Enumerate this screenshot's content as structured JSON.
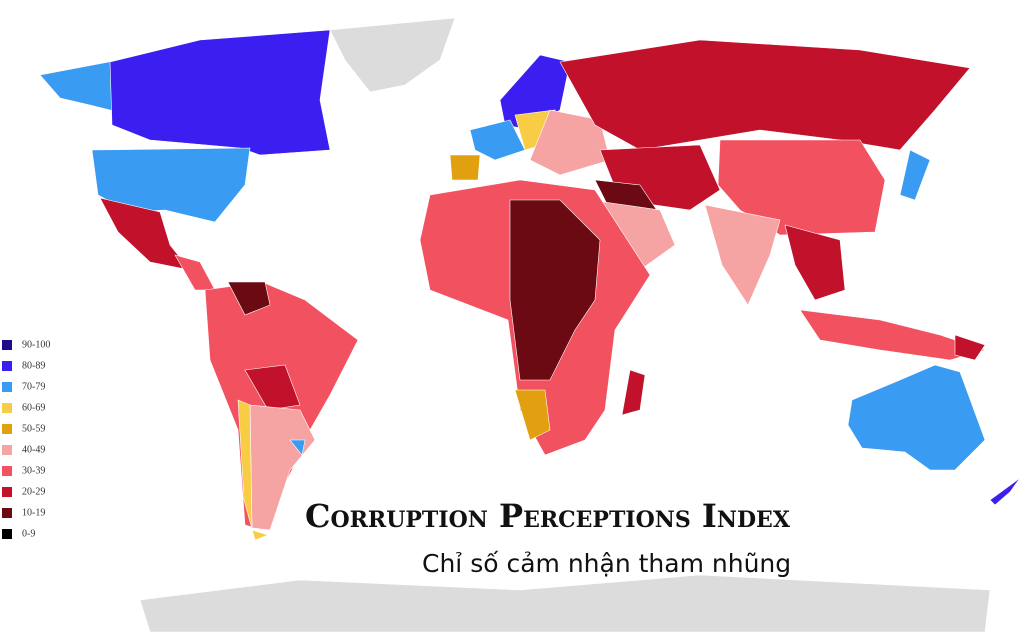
{
  "title": "Corruption Perceptions Index",
  "subtitle": "Chỉ số cảm nhận tham nhũng",
  "legend": {
    "items": [
      {
        "label": "90-100",
        "color": "#1c0c8e"
      },
      {
        "label": "80-89",
        "color": "#3b1ff0"
      },
      {
        "label": "70-79",
        "color": "#3a9bf2"
      },
      {
        "label": "60-69",
        "color": "#f8cc45"
      },
      {
        "label": "50-59",
        "color": "#e2a010"
      },
      {
        "label": "40-49",
        "color": "#f6a3a3"
      },
      {
        "label": "30-39",
        "color": "#f2515f"
      },
      {
        "label": "20-29",
        "color": "#c1112b"
      },
      {
        "label": "10-19",
        "color": "#6b0a12"
      },
      {
        "label": "0-9",
        "color": "#000000"
      }
    ]
  }
}
